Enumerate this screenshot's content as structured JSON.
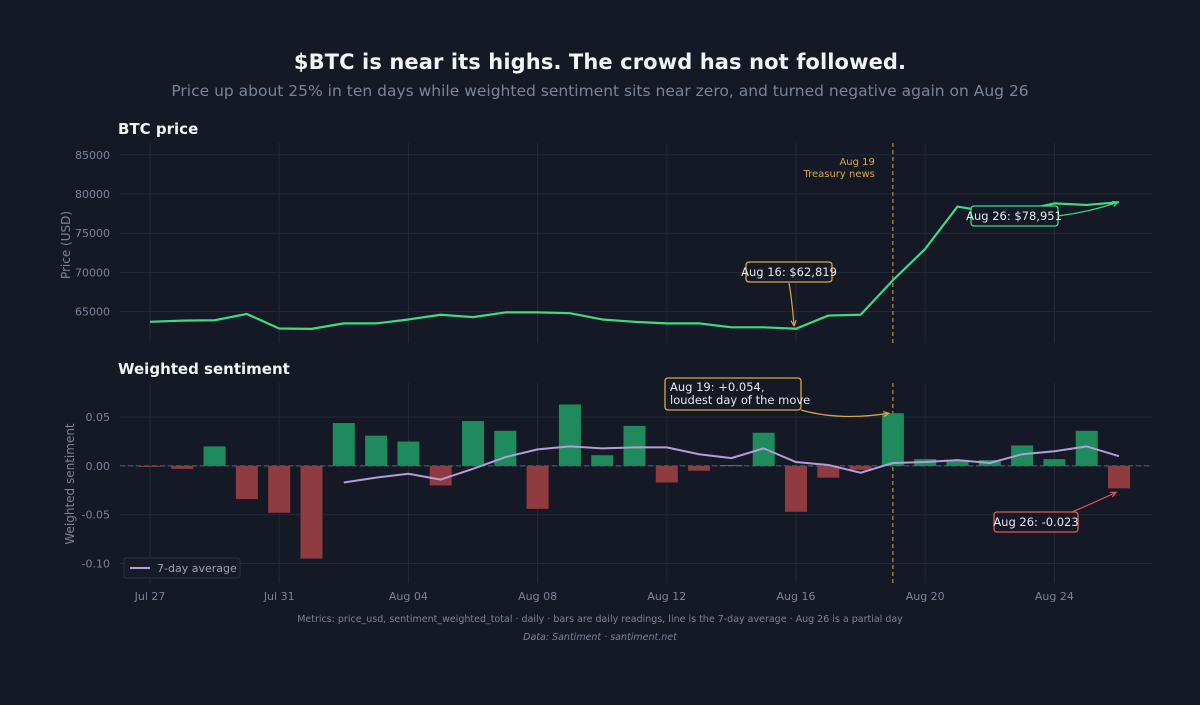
{
  "header": {
    "title": "$BTC is near its highs. The crowd has not followed.",
    "subtitle": "Price up about 25% in ten days while weighted sentiment sits near zero, and turned negative again on Aug 26"
  },
  "footer": {
    "notes": "Metrics: price_usd, sentiment_weighted_total · daily · bars are daily readings, line is the 7-day average · Aug 26 is a partial day",
    "source": "Data: Santiment · santiment.net"
  },
  "colors": {
    "background": "#141925",
    "price_line": "#3ddc84",
    "positive_bar": "#1f8a5c",
    "negative_bar": "#8f3b3f",
    "avg_line": "#b39ddb",
    "event": "#d8a848",
    "ann_negative": "#e05a5a"
  },
  "chart_data": [
    {
      "type": "line",
      "title": "BTC price",
      "ylabel": "Price (USD)",
      "ylim": [
        61000,
        86500
      ],
      "yticks": [
        "65000",
        "70000",
        "75000",
        "80000",
        "85000"
      ],
      "x": [
        "Jul 27",
        "Jul 28",
        "Jul 29",
        "Jul 30",
        "Jul 31",
        "Aug 01",
        "Aug 02",
        "Aug 03",
        "Aug 04",
        "Aug 05",
        "Aug 06",
        "Aug 07",
        "Aug 08",
        "Aug 09",
        "Aug 10",
        "Aug 11",
        "Aug 12",
        "Aug 13",
        "Aug 14",
        "Aug 15",
        "Aug 16",
        "Aug 17",
        "Aug 18",
        "Aug 19",
        "Aug 20",
        "Aug 21",
        "Aug 22",
        "Aug 23",
        "Aug 24",
        "Aug 25",
        "Aug 26"
      ],
      "series": [
        {
          "values": [
            63700,
            63850,
            63900,
            64700,
            62850,
            62800,
            63500,
            63500,
            64000,
            64600,
            64300,
            64900,
            64900,
            64800,
            64000,
            63700,
            63500,
            63500,
            63000,
            63000,
            62819,
            64500,
            64600,
            69000,
            73000,
            78400,
            77700,
            77900,
            78800,
            78600,
            78951
          ]
        }
      ],
      "event": {
        "date": "Aug 19",
        "label_line1": "Aug 19",
        "label_line2": "Treasury news"
      },
      "annotations": [
        {
          "text": "Aug 16: $62,819",
          "date": "Aug 16",
          "value": 62819,
          "style": "event"
        },
        {
          "text": "Aug 26: $78,951",
          "date": "Aug 26",
          "value": 78951,
          "style": "price"
        }
      ]
    },
    {
      "type": "bar",
      "title": "Weighted sentiment",
      "ylabel": "Weighted sentiment",
      "ylim": [
        -0.12,
        0.085
      ],
      "yticks": [
        "-0.10",
        "-0.05",
        "0.00",
        "0.05"
      ],
      "x": [
        "Jul 27",
        "Jul 28",
        "Jul 29",
        "Jul 30",
        "Jul 31",
        "Aug 01",
        "Aug 02",
        "Aug 03",
        "Aug 04",
        "Aug 05",
        "Aug 06",
        "Aug 07",
        "Aug 08",
        "Aug 09",
        "Aug 10",
        "Aug 11",
        "Aug 12",
        "Aug 13",
        "Aug 14",
        "Aug 15",
        "Aug 16",
        "Aug 17",
        "Aug 18",
        "Aug 19",
        "Aug 20",
        "Aug 21",
        "Aug 22",
        "Aug 23",
        "Aug 24",
        "Aug 25",
        "Aug 26"
      ],
      "xticks": [
        "Jul 27",
        "Jul 31",
        "Aug 04",
        "Aug 08",
        "Aug 12",
        "Aug 16",
        "Aug 20",
        "Aug 24"
      ],
      "series": [
        {
          "values": [
            -0.001,
            -0.003,
            0.02,
            -0.034,
            -0.048,
            -0.095,
            0.044,
            0.031,
            0.025,
            -0.02,
            0.046,
            0.036,
            -0.044,
            0.063,
            0.011,
            0.041,
            -0.017,
            -0.005,
            0.001,
            0.034,
            -0.047,
            -0.012,
            -0.004,
            0.054,
            0.007,
            0.006,
            0.006,
            0.021,
            0.007,
            0.036,
            -0.023
          ]
        },
        {
          "name": "7-day average",
          "values": [
            null,
            null,
            null,
            null,
            null,
            null,
            -0.017,
            -0.012,
            -0.008,
            -0.014,
            -0.003,
            0.009,
            0.017,
            0.02,
            0.018,
            0.019,
            0.019,
            0.012,
            0.008,
            0.018,
            0.004,
            0.001,
            -0.007,
            0.003,
            0.004,
            0.006,
            0.003,
            0.012,
            0.015,
            0.02,
            0.01
          ]
        }
      ],
      "event": {
        "date": "Aug 19"
      },
      "annotations": [
        {
          "text_line1": "Aug 19: +0.054,",
          "text_line2": "loudest day of the move",
          "date": "Aug 19",
          "value": 0.054,
          "style": "event"
        },
        {
          "text": "Aug 26: -0.023",
          "date": "Aug 26",
          "value": -0.023,
          "style": "negative"
        }
      ],
      "legend": {
        "label": "7-day average",
        "position": "bottom-left"
      }
    }
  ]
}
